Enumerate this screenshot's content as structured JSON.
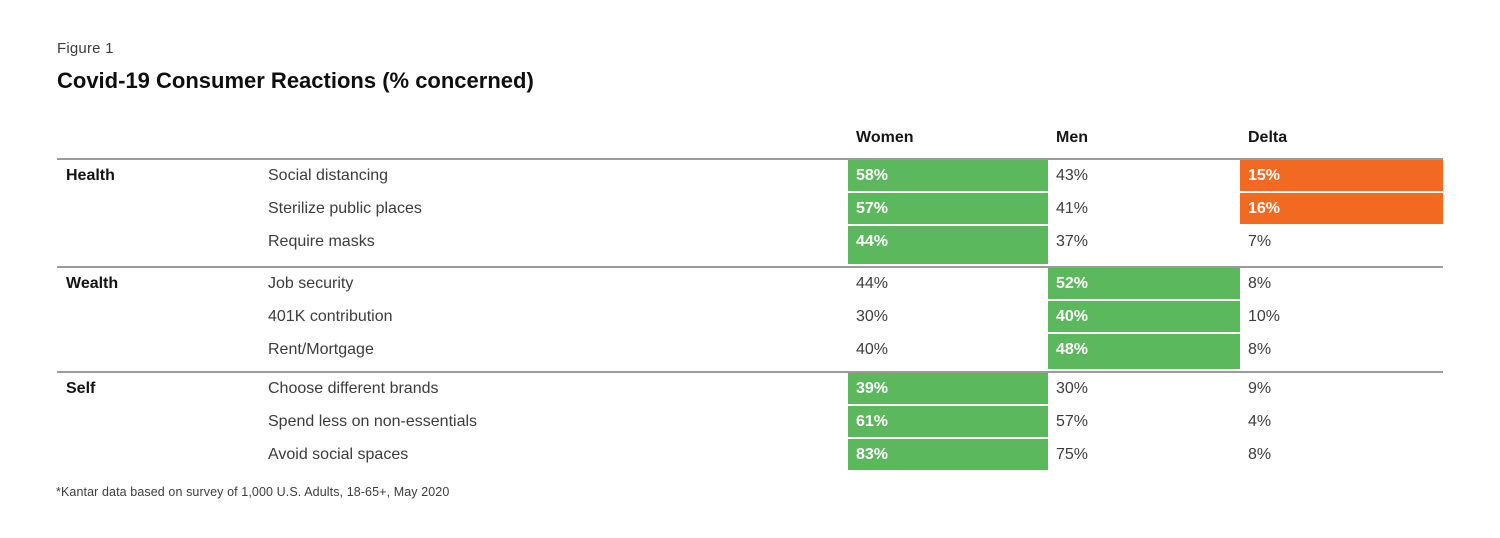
{
  "figure_label": "Figure 1",
  "title": "Covid-19 Consumer Reactions (% concerned)",
  "footnote": "*Kantar data based on survey of 1,000 U.S. Adults, 18-65+, May 2020",
  "colors": {
    "highlight_green": "#5CB85C",
    "highlight_orange": "#F26A22",
    "rule_gray": "#9B9B9B",
    "value_text": "#3C3C3C",
    "highlight_text": "#FFFFFF"
  },
  "chart_data": {
    "type": "table",
    "title": "Covid-19 Consumer Reactions (% concerned)",
    "columns": [
      "Women",
      "Men",
      "Delta"
    ],
    "sections": [
      {
        "category": "Health",
        "rows": [
          {
            "label": "Social distancing",
            "women": "58%",
            "men": "43%",
            "delta": "15%",
            "women_hl": "green",
            "men_hl": null,
            "delta_hl": "orange"
          },
          {
            "label": "Sterilize public places",
            "women": "57%",
            "men": "41%",
            "delta": "16%",
            "women_hl": "green",
            "men_hl": null,
            "delta_hl": "orange"
          },
          {
            "label": "Require masks",
            "women": "44%",
            "men": "37%",
            "delta": "7%",
            "women_hl": "green",
            "men_hl": null,
            "delta_hl": null
          }
        ]
      },
      {
        "category": "Wealth",
        "rows": [
          {
            "label": "Job security",
            "women": "44%",
            "men": "52%",
            "delta": "8%",
            "women_hl": null,
            "men_hl": "green",
            "delta_hl": null
          },
          {
            "label": "401K contribution",
            "women": "30%",
            "men": "40%",
            "delta": "10%",
            "women_hl": null,
            "men_hl": "green",
            "delta_hl": null
          },
          {
            "label": "Rent/Mortgage",
            "women": "40%",
            "men": "48%",
            "delta": "8%",
            "women_hl": null,
            "men_hl": "green",
            "delta_hl": null
          }
        ]
      },
      {
        "category": "Self",
        "rows": [
          {
            "label": "Choose different brands",
            "women": "39%",
            "men": "30%",
            "delta": "9%",
            "women_hl": "green",
            "men_hl": null,
            "delta_hl": null
          },
          {
            "label": "Spend less on non-essentials",
            "women": "61%",
            "men": "57%",
            "delta": "4%",
            "women_hl": "green",
            "men_hl": null,
            "delta_hl": null
          },
          {
            "label": "Avoid social spaces",
            "women": "83%",
            "men": "75%",
            "delta": "8%",
            "women_hl": "green",
            "men_hl": null,
            "delta_hl": null
          }
        ]
      }
    ]
  }
}
